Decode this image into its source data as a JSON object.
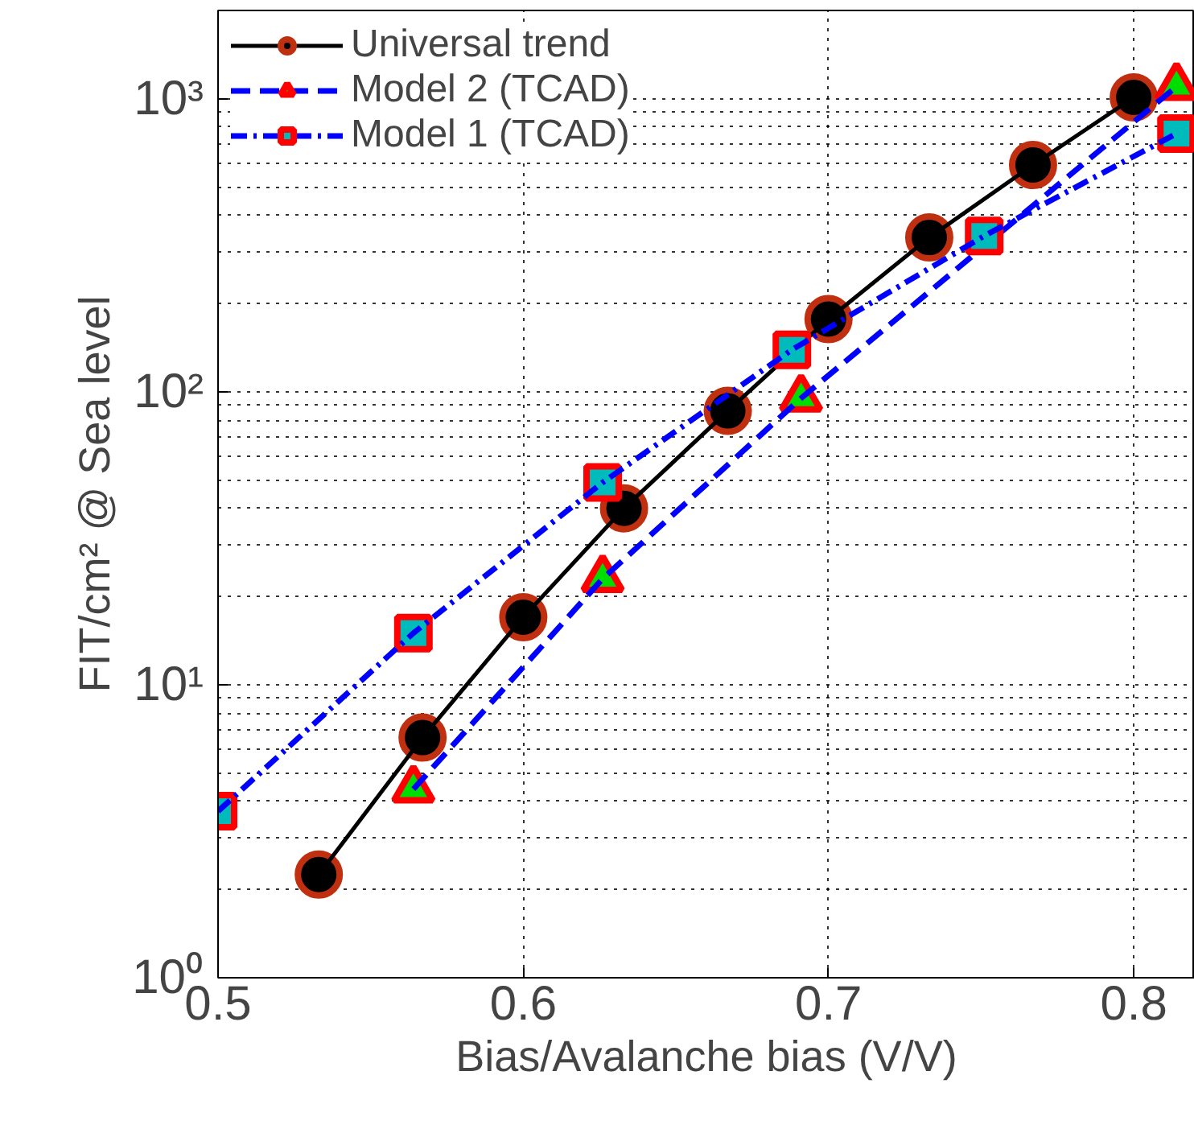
{
  "chart_data": {
    "type": "line",
    "xlabel": "Bias/Avalanche bias (V/V)",
    "ylabel": "FIT/cm² @ Sea level",
    "log": "y",
    "grid": true,
    "legend": "top left",
    "xlim": [
      0.5,
      0.82
    ],
    "ylim": [
      1,
      2000
    ],
    "xticks": [
      0.5,
      0.6,
      0.7,
      0.8
    ],
    "yticks": [
      {
        "value": 1,
        "label": "10⁰"
      },
      {
        "value": 10,
        "label": "10¹"
      },
      {
        "value": 100,
        "label": "10²"
      },
      {
        "value": 1000,
        "label": "10³"
      }
    ],
    "series": [
      {
        "name": "Universal trend",
        "color": "#000000",
        "marker": "circle",
        "line_style": "solid",
        "x": [
          0.533,
          0.567,
          0.6,
          0.633,
          0.667,
          0.7,
          0.733,
          0.767,
          0.8
        ],
        "values": [
          2.25,
          6.6,
          17,
          40,
          86,
          177,
          336,
          594,
          1010
        ]
      },
      {
        "name": "Model 2 (TCAD)",
        "color": "#0000ff",
        "marker": "triangle",
        "line_style": "dashed",
        "x": [
          0.564,
          0.626,
          0.691,
          0.814
        ],
        "values": [
          4.4,
          23,
          95,
          1100
        ]
      },
      {
        "name": "Model 1 (TCAD)",
        "color": "#0000ff",
        "marker": "square",
        "line_style": "dashdot",
        "x": [
          0.5,
          0.564,
          0.626,
          0.688,
          0.751,
          0.814
        ],
        "values": [
          3.7,
          15,
          49,
          139,
          340,
          760
        ]
      }
    ]
  }
}
